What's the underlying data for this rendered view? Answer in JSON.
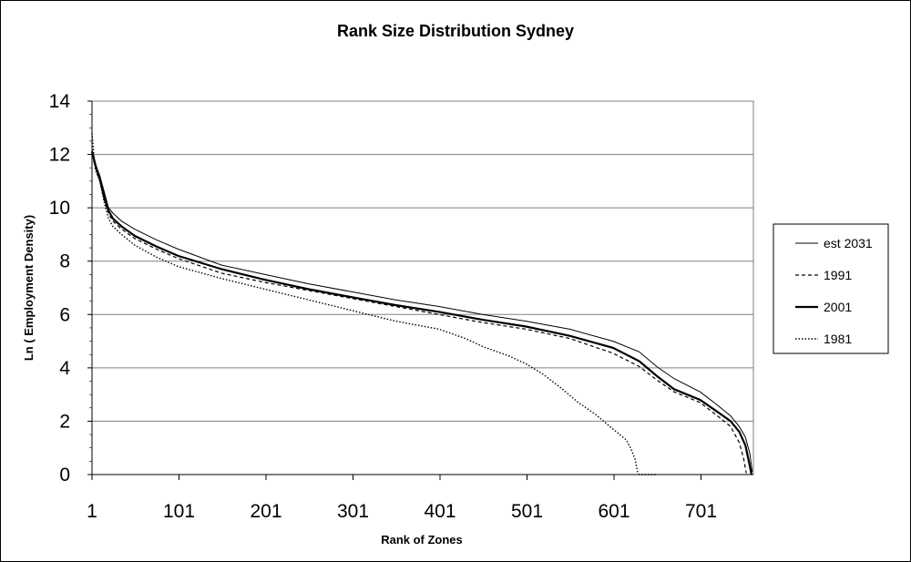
{
  "chart_data": {
    "type": "line",
    "title": "Rank Size Distribution Sydney",
    "xlabel": "Rank of Zones",
    "ylabel": "Ln ( Employment Density)",
    "xlim": [
      1,
      761
    ],
    "ylim": [
      0,
      14
    ],
    "x_ticks": [
      1,
      101,
      201,
      301,
      401,
      501,
      601,
      701
    ],
    "y_ticks": [
      0,
      2,
      4,
      6,
      8,
      10,
      12,
      14
    ],
    "grid": "horizontal",
    "legend_position": "right",
    "series": [
      {
        "name": "est 2031",
        "style": "thin-solid",
        "points": [
          [
            1,
            12.2
          ],
          [
            5,
            11.6
          ],
          [
            10,
            11.2
          ],
          [
            15,
            10.6
          ],
          [
            20,
            10.0
          ],
          [
            25,
            9.8
          ],
          [
            35,
            9.5
          ],
          [
            50,
            9.2
          ],
          [
            75,
            8.8
          ],
          [
            100,
            8.45
          ],
          [
            150,
            7.85
          ],
          [
            200,
            7.5
          ],
          [
            250,
            7.15
          ],
          [
            300,
            6.85
          ],
          [
            350,
            6.55
          ],
          [
            400,
            6.3
          ],
          [
            450,
            6.0
          ],
          [
            500,
            5.75
          ],
          [
            550,
            5.45
          ],
          [
            600,
            5.0
          ],
          [
            630,
            4.6
          ],
          [
            650,
            4.05
          ],
          [
            670,
            3.6
          ],
          [
            700,
            3.1
          ],
          [
            720,
            2.6
          ],
          [
            735,
            2.2
          ],
          [
            745,
            1.8
          ],
          [
            752,
            1.4
          ],
          [
            757,
            0.8
          ],
          [
            760,
            0.1
          ]
        ]
      },
      {
        "name": "1991",
        "style": "dashed",
        "points": [
          [
            1,
            12.0
          ],
          [
            5,
            11.5
          ],
          [
            10,
            11.0
          ],
          [
            15,
            10.3
          ],
          [
            20,
            9.8
          ],
          [
            25,
            9.5
          ],
          [
            35,
            9.2
          ],
          [
            50,
            8.85
          ],
          [
            75,
            8.45
          ],
          [
            100,
            8.1
          ],
          [
            150,
            7.55
          ],
          [
            200,
            7.2
          ],
          [
            250,
            6.9
          ],
          [
            300,
            6.6
          ],
          [
            350,
            6.3
          ],
          [
            400,
            6.0
          ],
          [
            450,
            5.7
          ],
          [
            500,
            5.45
          ],
          [
            550,
            5.1
          ],
          [
            600,
            4.55
          ],
          [
            630,
            4.05
          ],
          [
            650,
            3.55
          ],
          [
            670,
            3.1
          ],
          [
            700,
            2.7
          ],
          [
            720,
            2.2
          ],
          [
            735,
            1.8
          ],
          [
            745,
            1.2
          ],
          [
            750,
            0.6
          ],
          [
            753,
            0.05
          ]
        ]
      },
      {
        "name": "2001",
        "style": "thick-solid",
        "points": [
          [
            1,
            12.1
          ],
          [
            5,
            11.6
          ],
          [
            10,
            11.1
          ],
          [
            15,
            10.4
          ],
          [
            20,
            9.9
          ],
          [
            25,
            9.6
          ],
          [
            35,
            9.3
          ],
          [
            50,
            8.95
          ],
          [
            75,
            8.55
          ],
          [
            100,
            8.2
          ],
          [
            150,
            7.7
          ],
          [
            200,
            7.3
          ],
          [
            250,
            6.95
          ],
          [
            300,
            6.65
          ],
          [
            350,
            6.35
          ],
          [
            400,
            6.1
          ],
          [
            450,
            5.8
          ],
          [
            500,
            5.55
          ],
          [
            550,
            5.2
          ],
          [
            600,
            4.75
          ],
          [
            630,
            4.25
          ],
          [
            650,
            3.7
          ],
          [
            670,
            3.2
          ],
          [
            700,
            2.8
          ],
          [
            720,
            2.35
          ],
          [
            735,
            2.0
          ],
          [
            745,
            1.6
          ],
          [
            752,
            1.1
          ],
          [
            756,
            0.5
          ],
          [
            759,
            0.0
          ]
        ]
      },
      {
        "name": "1981",
        "style": "dotted",
        "points": [
          [
            1,
            12.8
          ],
          [
            3,
            12.0
          ],
          [
            5,
            11.4
          ],
          [
            10,
            11.0
          ],
          [
            15,
            10.2
          ],
          [
            20,
            9.6
          ],
          [
            25,
            9.3
          ],
          [
            35,
            9.0
          ],
          [
            50,
            8.6
          ],
          [
            75,
            8.15
          ],
          [
            100,
            7.8
          ],
          [
            150,
            7.35
          ],
          [
            200,
            6.95
          ],
          [
            250,
            6.55
          ],
          [
            300,
            6.15
          ],
          [
            350,
            5.75
          ],
          [
            400,
            5.45
          ],
          [
            430,
            5.1
          ],
          [
            450,
            4.8
          ],
          [
            480,
            4.45
          ],
          [
            500,
            4.15
          ],
          [
            520,
            3.75
          ],
          [
            540,
            3.25
          ],
          [
            560,
            2.7
          ],
          [
            580,
            2.25
          ],
          [
            600,
            1.7
          ],
          [
            615,
            1.3
          ],
          [
            620,
            1.0
          ],
          [
            625,
            0.6
          ],
          [
            628,
            0.1
          ],
          [
            630,
            0.0
          ],
          [
            650,
            0.0
          ]
        ]
      }
    ]
  }
}
